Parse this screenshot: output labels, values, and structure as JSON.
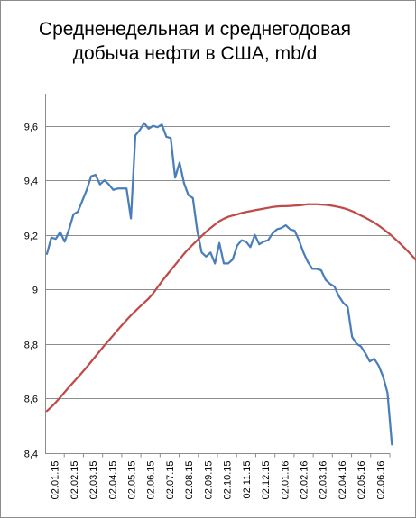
{
  "chart_data": {
    "type": "line",
    "title_lines": [
      "Средненедельная и среднегодовая",
      "добыча нефти в США, mb/d"
    ],
    "ylim": [
      8.4,
      9.7
    ],
    "y_ticks": [
      8.4,
      8.6,
      8.8,
      9,
      9.2,
      9.4,
      9.6
    ],
    "y_tick_labels": [
      "8,4",
      "8,6",
      "8,8",
      "9",
      "9,2",
      "9,4",
      "9,6"
    ],
    "x_tick_labels": [
      "02.01.15",
      "02.02.15",
      "02.03.15",
      "02.04.15",
      "02.05.15",
      "02.06.15",
      "02.07.15",
      "02.08.15",
      "02.09.15",
      "02.10.15",
      "02.11.15",
      "02.12.15",
      "02.01.16",
      "02.02.16",
      "02.03.16",
      "02.04.16",
      "02.05.16",
      "02.06.16"
    ],
    "weeks_per_month": 4.33,
    "grid": "horizontal",
    "series": [
      {
        "color": "#4a7ebb",
        "values": [
          9.13,
          9.19,
          9.185,
          9.21,
          9.175,
          9.22,
          9.275,
          9.285,
          9.325,
          9.365,
          9.415,
          9.42,
          9.385,
          9.4,
          9.385,
          9.365,
          9.37,
          9.37,
          9.37,
          9.26,
          9.565,
          9.585,
          9.61,
          9.59,
          9.6,
          9.595,
          9.605,
          9.56,
          9.555,
          9.41,
          9.465,
          9.39,
          9.345,
          9.335,
          9.215,
          9.135,
          9.12,
          9.135,
          9.095,
          9.17,
          9.095,
          9.095,
          9.11,
          9.16,
          9.18,
          9.175,
          9.155,
          9.2,
          9.165,
          9.175,
          9.18,
          9.205,
          9.22,
          9.225,
          9.235,
          9.22,
          9.215,
          9.18,
          9.135,
          9.1,
          9.075,
          9.075,
          9.07,
          9.035,
          9.02,
          9.01,
          8.975,
          8.95,
          8.935,
          8.825,
          8.8,
          8.79,
          8.765,
          8.735,
          8.745,
          8.72,
          8.68,
          8.62,
          8.43
        ]
      },
      {
        "color": "#be4b48",
        "values": [
          8.553,
          8.568,
          8.585,
          8.603,
          8.622,
          8.641,
          8.659,
          8.677,
          8.695,
          8.714,
          8.734,
          8.754,
          8.774,
          8.794,
          8.812,
          8.831,
          8.851,
          8.869,
          8.887,
          8.904,
          8.92,
          8.936,
          8.951,
          8.966,
          8.985,
          9.007,
          9.029,
          9.05,
          9.07,
          9.09,
          9.11,
          9.13,
          9.148,
          9.164,
          9.18,
          9.196,
          9.211,
          9.225,
          9.238,
          9.25,
          9.259,
          9.266,
          9.271,
          9.275,
          9.28,
          9.284,
          9.287,
          9.29,
          9.293,
          9.296,
          9.299,
          9.302,
          9.304,
          9.305,
          9.305,
          9.306,
          9.307,
          9.308,
          9.31,
          9.312,
          9.312,
          9.312,
          9.311,
          9.31,
          9.308,
          9.305,
          9.302,
          9.298,
          9.293,
          9.287,
          9.279,
          9.271,
          9.263,
          9.254,
          9.245,
          9.234,
          9.222,
          9.209,
          9.196,
          9.181,
          9.166,
          9.15,
          9.133,
          9.115,
          9.097
        ]
      }
    ]
  }
}
